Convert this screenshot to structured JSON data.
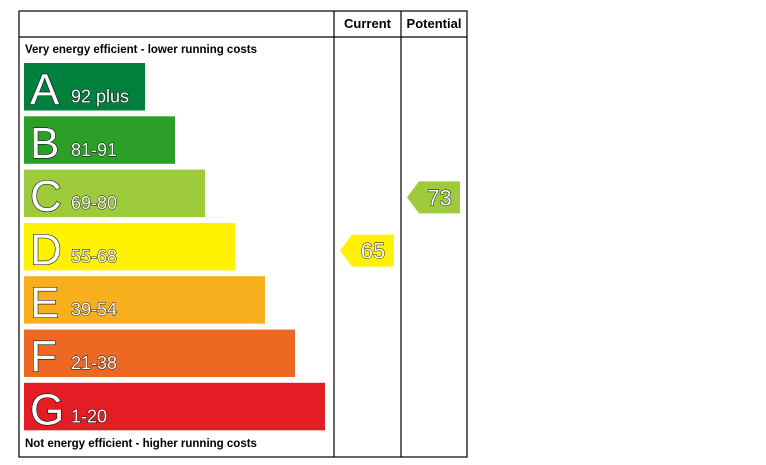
{
  "chart_data": {
    "type": "bar",
    "headers": {
      "current": "Current",
      "potential": "Potential"
    },
    "top_caption": "Very energy efficient - lower running costs",
    "bottom_caption": "Not energy efficient - higher running costs",
    "bands": [
      {
        "letter": "A",
        "range": "92 plus",
        "color": "#007f3d"
      },
      {
        "letter": "B",
        "range": "81-91",
        "color": "#2c9f29"
      },
      {
        "letter": "C",
        "range": "69-80",
        "color": "#9dcb3c"
      },
      {
        "letter": "D",
        "range": "55-68",
        "color": "#fff200"
      },
      {
        "letter": "E",
        "range": "39-54",
        "color": "#f7af1d"
      },
      {
        "letter": "F",
        "range": "21-38",
        "color": "#ed6823"
      },
      {
        "letter": "G",
        "range": "1-20",
        "color": "#e31d23"
      }
    ],
    "current": {
      "value": 65,
      "band": "D",
      "color": "#fff200"
    },
    "potential": {
      "value": 73,
      "band": "C",
      "color": "#9dcb3c"
    }
  }
}
